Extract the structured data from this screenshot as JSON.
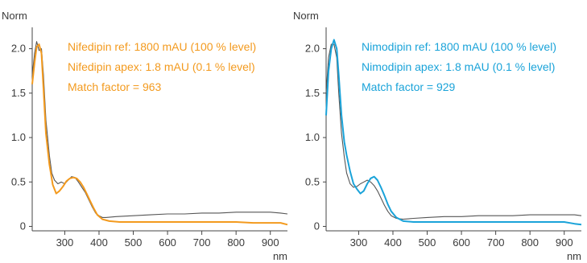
{
  "chart_data": [
    {
      "type": "line",
      "title": "",
      "ylabel": "Norm",
      "xlabel": "nm",
      "xlim": [
        205,
        950
      ],
      "ylim": [
        -0.05,
        2.15
      ],
      "x_ticks": [
        300,
        400,
        500,
        600,
        700,
        800,
        900
      ],
      "y_ticks": [
        0,
        0.5,
        1.0,
        1.5,
        2.0
      ],
      "y_tick_labels": [
        "0",
        "0.5",
        "1.0",
        "1.5",
        "2.0"
      ],
      "grid": false,
      "annotations": [
        "Nifedipin ref: 1800 mAU (100 % level)",
        "Nifedipin apex: 1.8 mAU (0.1 % level)",
        "Match factor = 963"
      ],
      "annotation_color": "#F39A1E",
      "series": [
        {
          "color": "#F39A1E",
          "x": [
            205,
            212,
            218,
            225,
            232,
            238,
            245,
            255,
            265,
            275,
            285,
            295,
            305,
            315,
            325,
            335,
            345,
            355,
            365,
            375,
            385,
            395,
            410,
            430,
            460,
            500,
            550,
            600,
            650,
            700,
            750,
            800,
            850,
            900,
            930,
            950
          ],
          "y": [
            1.6,
            1.85,
            2.02,
            2.05,
            1.95,
            1.55,
            1.05,
            0.7,
            0.47,
            0.37,
            0.4,
            0.45,
            0.51,
            0.54,
            0.55,
            0.54,
            0.5,
            0.44,
            0.36,
            0.28,
            0.2,
            0.13,
            0.08,
            0.06,
            0.05,
            0.05,
            0.05,
            0.05,
            0.05,
            0.05,
            0.05,
            0.05,
            0.04,
            0.04,
            0.04,
            0.02
          ]
        },
        {
          "color": "#555555",
          "x": [
            205,
            212,
            218,
            225,
            232,
            238,
            245,
            255,
            262,
            270,
            280,
            290,
            300,
            310,
            320,
            330,
            340,
            350,
            360,
            370,
            380,
            390,
            400,
            410,
            420,
            450,
            500,
            550,
            600,
            650,
            700,
            750,
            800,
            850,
            900,
            930,
            950
          ],
          "y": [
            1.7,
            1.95,
            2.08,
            1.98,
            2.0,
            1.7,
            1.2,
            0.8,
            0.6,
            0.52,
            0.48,
            0.5,
            0.48,
            0.52,
            0.56,
            0.55,
            0.5,
            0.44,
            0.38,
            0.3,
            0.22,
            0.15,
            0.12,
            0.1,
            0.1,
            0.11,
            0.12,
            0.13,
            0.14,
            0.14,
            0.15,
            0.15,
            0.16,
            0.16,
            0.16,
            0.15,
            0.14
          ]
        }
      ]
    },
    {
      "type": "line",
      "title": "",
      "ylabel": "Norm",
      "xlabel": "nm",
      "xlim": [
        205,
        950
      ],
      "ylim": [
        -0.05,
        2.15
      ],
      "x_ticks": [
        300,
        400,
        500,
        600,
        700,
        800,
        900
      ],
      "y_ticks": [
        0,
        0.5,
        1.0,
        1.5,
        2.0
      ],
      "y_tick_labels": [
        "0",
        "0.5",
        "1.0",
        "1.5",
        "2.0"
      ],
      "grid": false,
      "annotations": [
        "Nimodipin ref: 1800 mAU (100 % level)",
        "Nimodipin apex: 1.8 mAU (0.1 % level)",
        "Match factor = 929"
      ],
      "annotation_color": "#1AA3D9",
      "series": [
        {
          "color": "#1AA3D9",
          "x": [
            205,
            212,
            220,
            228,
            236,
            242,
            250,
            258,
            265,
            275,
            285,
            295,
            305,
            315,
            325,
            335,
            345,
            355,
            365,
            375,
            385,
            395,
            410,
            430,
            460,
            500,
            550,
            600,
            650,
            700,
            750,
            800,
            850,
            900,
            930,
            950
          ],
          "y": [
            1.25,
            1.75,
            2.0,
            2.1,
            2.0,
            1.7,
            1.25,
            0.95,
            0.8,
            0.62,
            0.48,
            0.42,
            0.37,
            0.4,
            0.48,
            0.54,
            0.56,
            0.52,
            0.44,
            0.35,
            0.25,
            0.17,
            0.1,
            0.06,
            0.05,
            0.05,
            0.05,
            0.05,
            0.05,
            0.05,
            0.05,
            0.05,
            0.05,
            0.05,
            0.03,
            0.02
          ]
        },
        {
          "color": "#555555",
          "x": [
            205,
            212,
            220,
            228,
            236,
            242,
            250,
            258,
            265,
            275,
            285,
            295,
            305,
            315,
            325,
            335,
            345,
            355,
            365,
            375,
            385,
            395,
            410,
            430,
            460,
            500,
            550,
            600,
            650,
            700,
            750,
            800,
            850,
            900,
            930,
            950
          ],
          "y": [
            1.5,
            1.9,
            2.05,
            2.05,
            1.9,
            1.5,
            1.05,
            0.78,
            0.6,
            0.48,
            0.44,
            0.45,
            0.48,
            0.5,
            0.52,
            0.5,
            0.46,
            0.4,
            0.32,
            0.24,
            0.17,
            0.12,
            0.09,
            0.08,
            0.09,
            0.1,
            0.11,
            0.11,
            0.12,
            0.12,
            0.12,
            0.13,
            0.13,
            0.13,
            0.13,
            0.12
          ]
        }
      ]
    }
  ]
}
